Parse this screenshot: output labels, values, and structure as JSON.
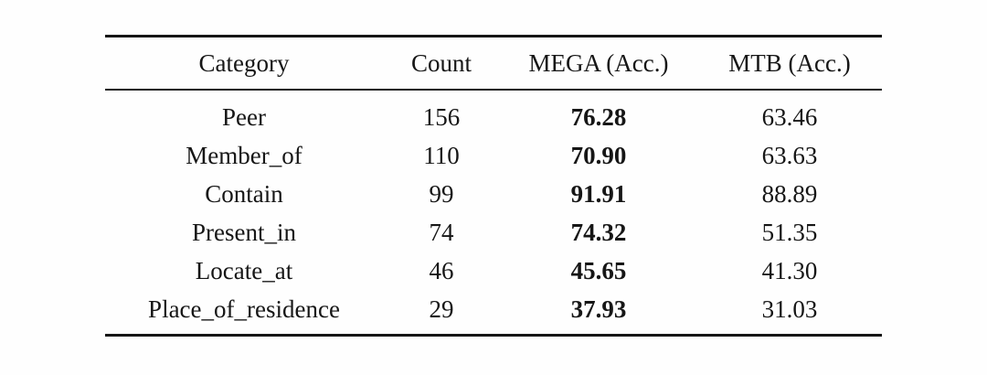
{
  "table": {
    "columns": [
      "Category",
      "Count",
      "MEGA (Acc.)",
      "MTB (Acc.)"
    ],
    "rows": [
      {
        "category": "Peer",
        "count": "156",
        "mega": "76.28",
        "mtb": "63.46"
      },
      {
        "category": "Member_of",
        "count": "110",
        "mega": "70.90",
        "mtb": "63.63"
      },
      {
        "category": "Contain",
        "count": "99",
        "mega": "91.91",
        "mtb": "88.89"
      },
      {
        "category": "Present_in",
        "count": "74",
        "mega": "74.32",
        "mtb": "51.35"
      },
      {
        "category": "Locate_at",
        "count": "46",
        "mega": "45.65",
        "mtb": "41.30"
      },
      {
        "category": "Place_of_residence",
        "count": "29",
        "mega": "37.93",
        "mtb": "31.03"
      }
    ],
    "bold_column": "MEGA (Acc.)",
    "colors": {
      "text": "#161616",
      "rule": "#161616",
      "background": "#fefefe"
    }
  }
}
